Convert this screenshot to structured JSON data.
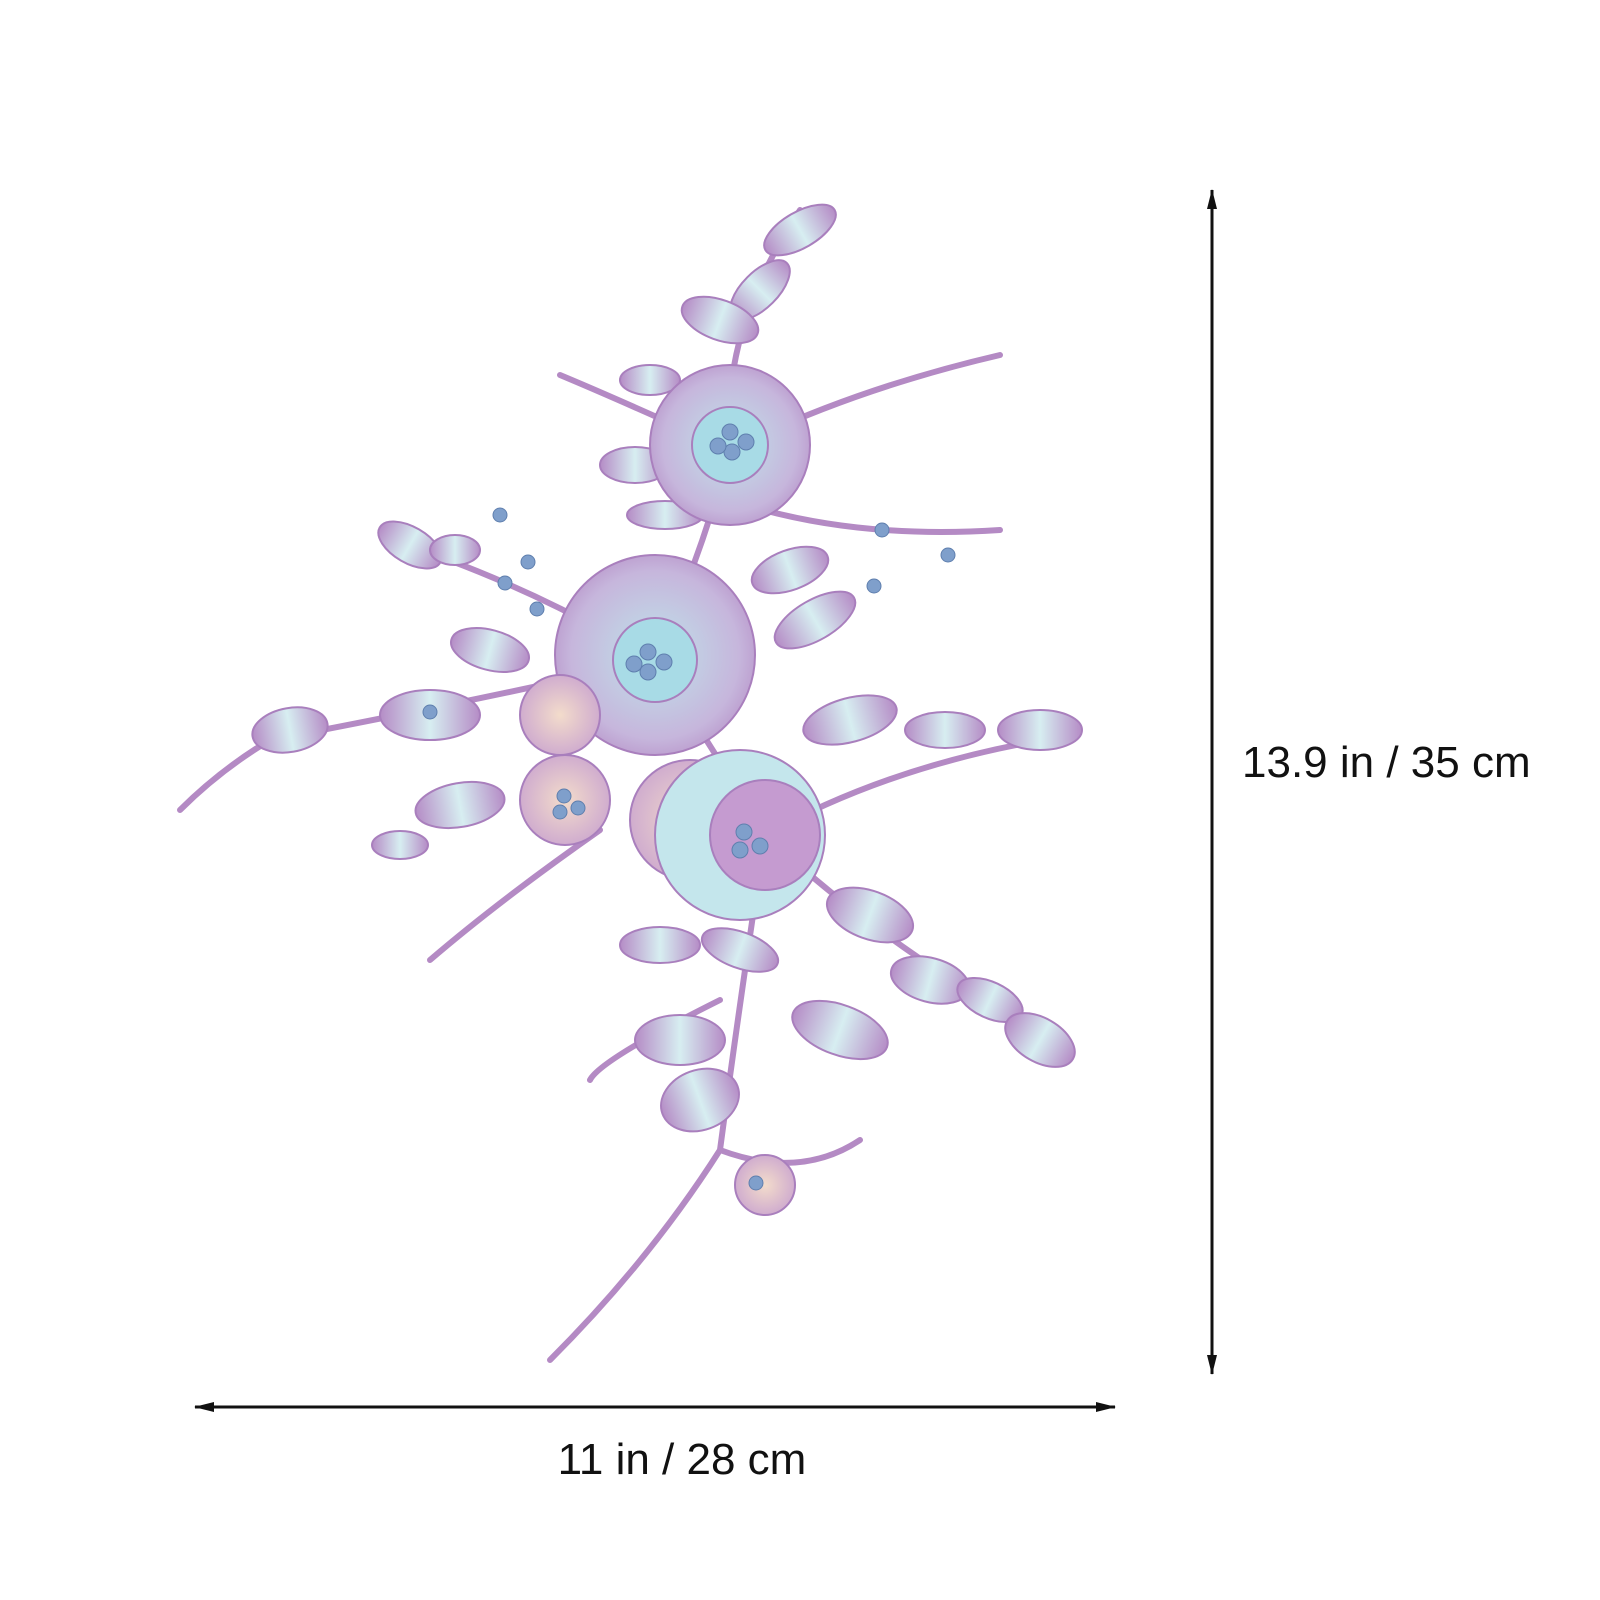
{
  "dimensions": {
    "height": "13.9 in / 35 cm",
    "width": "11 in / 28 cm"
  }
}
